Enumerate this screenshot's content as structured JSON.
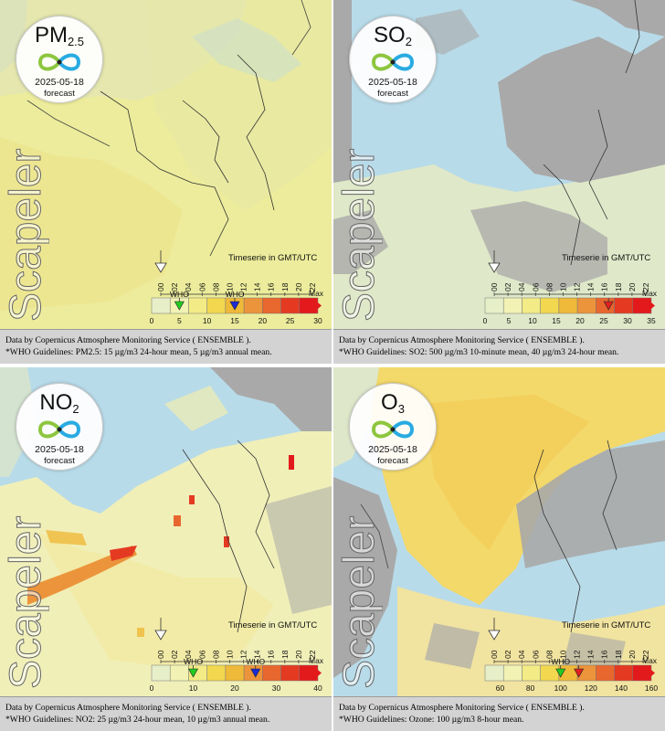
{
  "panels": [
    {
      "pollutant_main": "PM",
      "pollutant_sub": "2.5",
      "date": "2025-05-18",
      "forecast_label": "forecast",
      "brand": "Scapeler",
      "timeserie_label": "Timeserie in GMT/UTC",
      "hours": [
        "00",
        "02",
        "04",
        "06",
        "08",
        "10",
        "12",
        "14",
        "16",
        "18",
        "20",
        "22"
      ],
      "scale_ticks": [
        "0",
        "5",
        "10",
        "15",
        "20",
        "25",
        "30"
      ],
      "scale_range": [
        0,
        30
      ],
      "max_label": "Max",
      "who_label": "WHO",
      "who_markers": [
        {
          "label": "WHO",
          "value": 5,
          "color": "#22cc22"
        },
        {
          "label": "WHO",
          "value": 15,
          "color": "#1a2bd6"
        }
      ],
      "footer_line1": "Data by Copernicus Atmosphere Monitoring Service ( ENSEMBLE ).",
      "footer_line2": "*WHO Guidelines: PM2.5: 15 µg/m3 24-hour mean, 5 µg/m3 annual mean."
    },
    {
      "pollutant_main": "SO",
      "pollutant_sub": "2",
      "date": "2025-05-18",
      "forecast_label": "forecast",
      "brand": "Scapeler",
      "timeserie_label": "Timeserie in GMT/UTC",
      "hours": [
        "00",
        "02",
        "04",
        "06",
        "08",
        "10",
        "12",
        "14",
        "16",
        "18",
        "20",
        "22"
      ],
      "scale_ticks": [
        "0",
        "5",
        "10",
        "15",
        "20",
        "25",
        "30",
        "35"
      ],
      "scale_range": [
        0,
        35
      ],
      "max_label": "Max",
      "who_label": "",
      "who_markers": [
        {
          "label": "",
          "value": 26,
          "color": "#e02020"
        }
      ],
      "footer_line1": "Data by Copernicus Atmosphere Monitoring Service ( ENSEMBLE ).",
      "footer_line2": "*WHO Guidelines: SO2: 500 µg/m3 10-minute mean, 40 µg/m3 24-hour mean."
    },
    {
      "pollutant_main": "NO",
      "pollutant_sub": "2",
      "date": "2025-05-18",
      "forecast_label": "forecast",
      "brand": "Scapeler",
      "timeserie_label": "Timeserie in GMT/UTC",
      "hours": [
        "00",
        "02",
        "04",
        "06",
        "08",
        "10",
        "12",
        "14",
        "16",
        "18",
        "20",
        "22"
      ],
      "scale_ticks": [
        "0",
        "10",
        "20",
        "30",
        "40"
      ],
      "scale_range": [
        0,
        40
      ],
      "max_label": "Max",
      "who_label": "WHO",
      "who_markers": [
        {
          "label": "WHO",
          "value": 10,
          "color": "#22cc22"
        },
        {
          "label": "WHO",
          "value": 25,
          "color": "#1a2bd6"
        }
      ],
      "footer_line1": "Data by Copernicus Atmosphere Monitoring Service ( ENSEMBLE ).",
      "footer_line2": "*WHO Guidelines: NO2: 25 µg/m3 24-hour mean, 10 µg/m3 annual mean."
    },
    {
      "pollutant_main": "O",
      "pollutant_sub": "3",
      "date": "2025-05-18",
      "forecast_label": "forecast",
      "brand": "Scapeler",
      "timeserie_label": "Timeserie in GMT/UTC",
      "hours": [
        "00",
        "02",
        "04",
        "06",
        "08",
        "10",
        "12",
        "14",
        "16",
        "18",
        "20",
        "22"
      ],
      "scale_ticks": [
        "60",
        "80",
        "100",
        "120",
        "140",
        "160"
      ],
      "scale_range": [
        50,
        160
      ],
      "max_label": "Max",
      "who_label": "WHO",
      "who_markers": [
        {
          "label": "WHO",
          "value": 100,
          "color": "#22cc22"
        },
        {
          "label": "",
          "value": 112,
          "color": "#e02020"
        }
      ],
      "footer_line1": "Data by Copernicus Atmosphere Monitoring Service ( ENSEMBLE ).",
      "footer_line2": "*WHO Guidelines: Ozone: 100 µg/m3 8-hour mean."
    }
  ],
  "colors": {
    "sea": "#b8dbe9",
    "land_no_data": "#a9a9a9",
    "scale": [
      "#e6efc8",
      "#f1f2b4",
      "#f3ec86",
      "#f2d84f",
      "#efb93a",
      "#ec943b",
      "#e8672e",
      "#e53a22",
      "#e31a1c"
    ]
  }
}
